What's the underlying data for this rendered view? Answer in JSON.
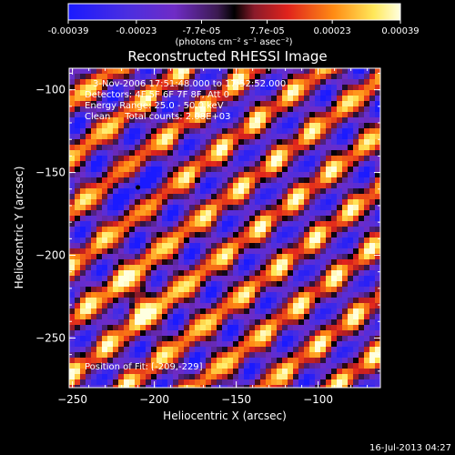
{
  "colorbar": {
    "tick_labels": [
      "-0.00039",
      "-0.00023",
      "-7.7e-05",
      "7.7e-05",
      "0.00023",
      "0.00039"
    ],
    "tick_values": [
      -0.00039,
      -0.00023,
      -7.7e-05,
      7.7e-05,
      0.00023,
      0.00039
    ],
    "range": [
      -0.00039,
      0.00039
    ],
    "unit_label": "(photons cm⁻² s⁻¹ asec⁻²)"
  },
  "title": "Reconstructed RHESSI Image",
  "annotations": {
    "time": "3-Nov-2006 17:51:48.000 to 17:52:52.000",
    "detectors": "Detectors: 4F 5F 6F 7F 8F, Att 0",
    "energy": "Energy Range: 25.0 - 50.0 keV",
    "method": "Clean     Total counts: 2.08E+03",
    "position": "Position of Fit: [-209,-229]"
  },
  "footer_timestamp": "16-Jul-2013 04:27",
  "colors": {
    "background": "#000000",
    "foreground": "#ffffff",
    "colormap": [
      "#1a1aff",
      "#6f2cc6",
      "#4b1f6b",
      "#000000",
      "#8a1a2a",
      "#e0231c",
      "#ff8c14",
      "#ffe85a",
      "#ffffe0"
    ]
  },
  "chart_data": {
    "type": "heatmap",
    "title": "Reconstructed RHESSI Image",
    "xlabel": "Heliocentric X (arcsec)",
    "ylabel": "Heliocentric Y (arcsec)",
    "xlim": [
      -252,
      -62
    ],
    "ylim": [
      -280,
      -87
    ],
    "x_ticks": [
      -250,
      -200,
      -150,
      -100
    ],
    "x_tick_labels": [
      "−250",
      "−200",
      "−150",
      "−100"
    ],
    "y_ticks": [
      -100,
      -150,
      -200,
      -250
    ],
    "y_tick_labels": [
      "−100",
      "−150",
      "−200",
      "−250"
    ],
    "color_scale": "rainbow-like (blue-purple-black-red-yellow-white)",
    "value_range": [
      -0.00039,
      0.00039
    ],
    "marker": {
      "x": -210,
      "y": -159,
      "label": "minimum dot"
    },
    "pattern": "diagonal stripe fringes running from lower-left to upper-right"
  }
}
